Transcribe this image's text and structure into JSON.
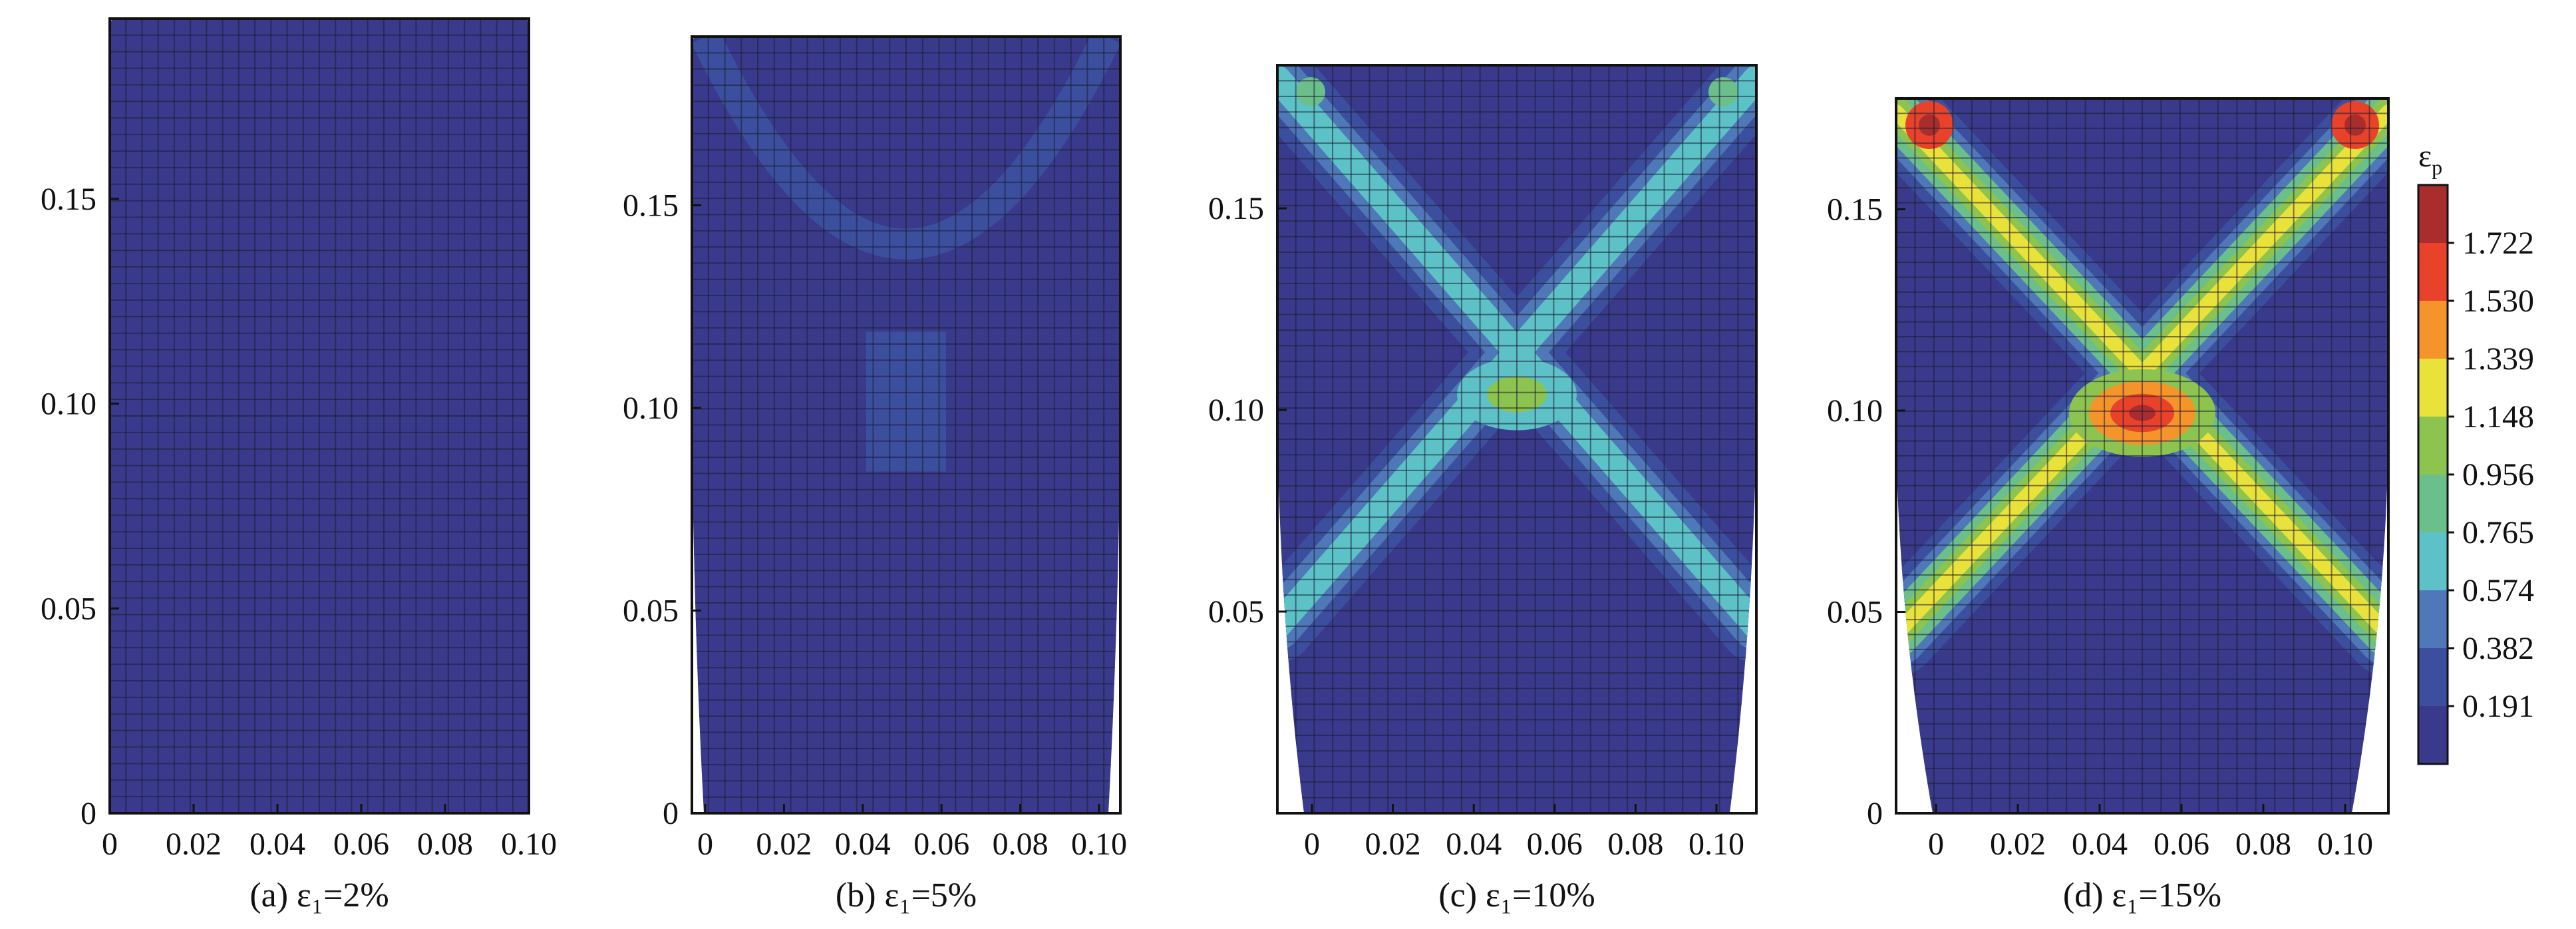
{
  "colors": {
    "background": "#3a3a8c",
    "levels": [
      "#3a3a8c",
      "#3c4f9e",
      "#4f78b8",
      "#5cc2c7",
      "#6bbf8a",
      "#8dc44f",
      "#e9e23b",
      "#f6942c",
      "#e8432a",
      "#a92d2d"
    ],
    "mesh": "#1c1c33"
  },
  "chart_data": [
    {
      "type": "heatmap",
      "panel": "a",
      "caption": "(a) ε₁=2%",
      "x_ticks": [
        "0",
        "0.02",
        "0.04",
        "0.06",
        "0.08",
        "0.10"
      ],
      "y_ticks": [
        "0",
        "0.05",
        "0.10",
        "0.15"
      ],
      "xlim": [
        0,
        0.1
      ],
      "ylim": [
        0,
        0.195
      ],
      "max_plastic_strain": 0.1
    },
    {
      "type": "heatmap",
      "panel": "b",
      "caption": "(b) ε₁=5%",
      "x_ticks": [
        "0",
        "0.02",
        "0.04",
        "0.06",
        "0.08",
        "0.10"
      ],
      "y_ticks": [
        "0",
        "0.05",
        "0.10",
        "0.15"
      ],
      "xlim": [
        -0.002,
        0.102
      ],
      "ylim": [
        0,
        0.19
      ],
      "max_plastic_strain": 0.3
    },
    {
      "type": "heatmap",
      "panel": "c",
      "caption": "(c) ε₁=10%",
      "x_ticks": [
        "0",
        "0.02",
        "0.04",
        "0.06",
        "0.08",
        "0.10"
      ],
      "y_ticks": [
        "0.05",
        "0.10",
        "0.15"
      ],
      "xlim": [
        -0.009,
        0.109
      ],
      "ylim": [
        0,
        0.184
      ],
      "max_plastic_strain": 1.0
    },
    {
      "type": "heatmap",
      "panel": "d",
      "caption": "(d) ε₁=15%",
      "x_ticks": [
        "0",
        "0.02",
        "0.04",
        "0.06",
        "0.08",
        "0.10"
      ],
      "y_ticks": [
        "0",
        "0.05",
        "0.10",
        "0.15"
      ],
      "xlim": [
        -0.012,
        0.112
      ],
      "ylim": [
        0,
        0.181
      ],
      "max_plastic_strain": 1.8
    }
  ],
  "colorbar": {
    "title": "ε",
    "title_subscript": "p",
    "labels": [
      "1.722",
      "1.530",
      "1.339",
      "1.148",
      "0.956",
      "0.765",
      "0.574",
      "0.382",
      "0.191"
    ]
  }
}
